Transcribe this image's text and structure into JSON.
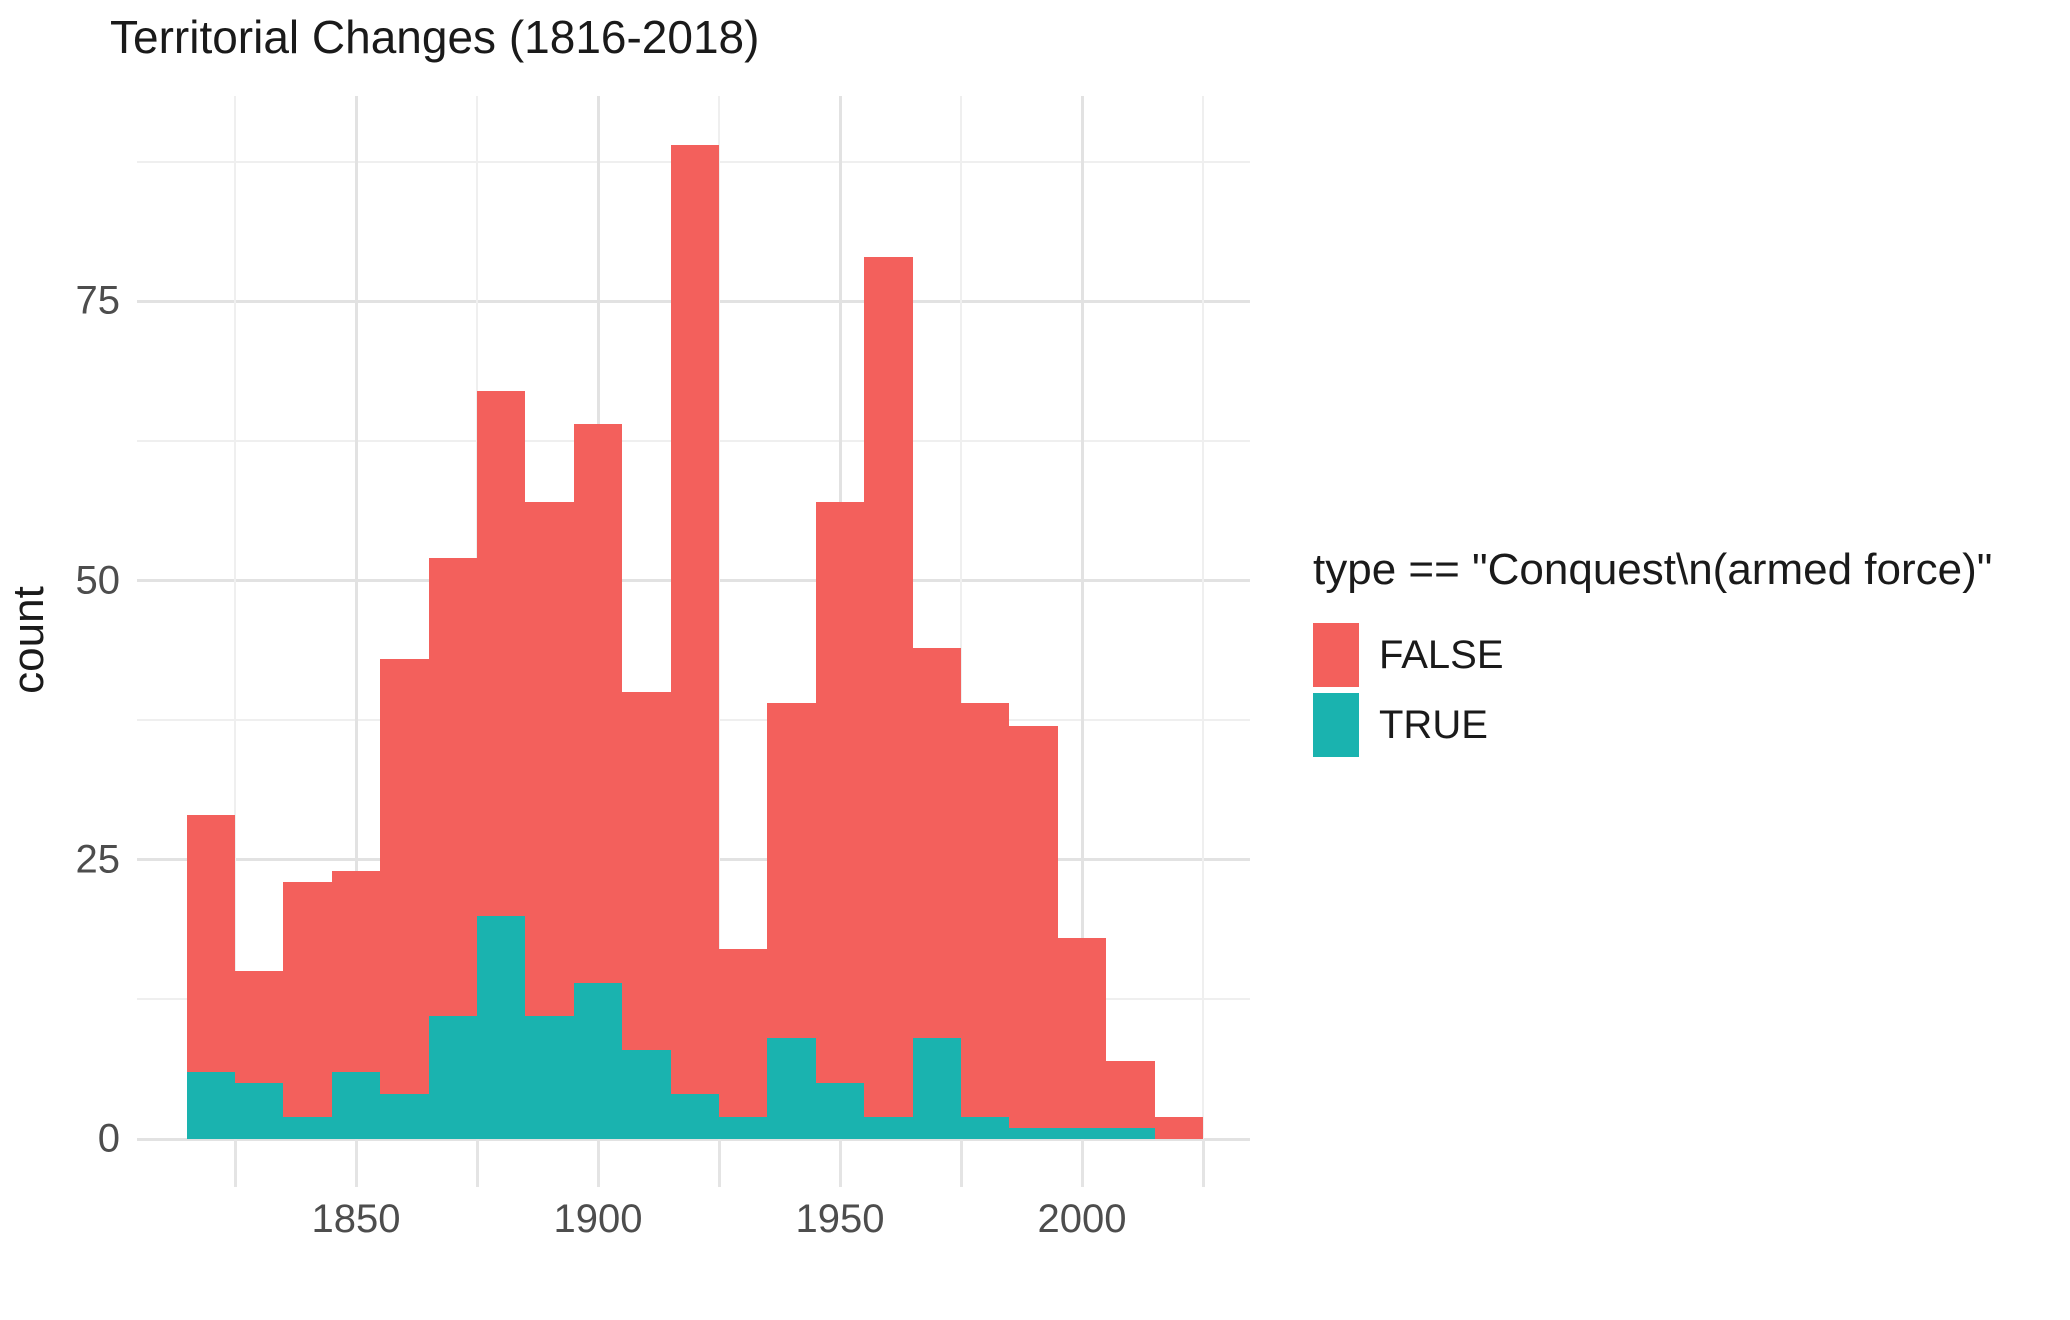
{
  "title": "Territorial Changes (1816-2018)",
  "colors": {
    "false_fill": "#f3605c",
    "true_fill": "#1ab3af",
    "grid_major": "#e2e2e2",
    "grid_minor": "#efefef",
    "axis_text": "#4d4d4d",
    "text": "#1a1a1a"
  },
  "chart_data": {
    "type": "bar",
    "subtype": "stacked-histogram",
    "title": "Territorial Changes (1816-2018)",
    "xlabel": "",
    "ylabel": "count",
    "bin_width_years": 10,
    "x_domain": [
      1815,
      2025
    ],
    "ylim": [
      0,
      93.4
    ],
    "grid": "on",
    "legend_position": "right",
    "categories": [
      1820,
      1830,
      1840,
      1850,
      1860,
      1870,
      1880,
      1890,
      1900,
      1910,
      1920,
      1930,
      1940,
      1950,
      1960,
      1970,
      1980,
      1990,
      2000,
      2010,
      2020
    ],
    "series": [
      {
        "name": "FALSE",
        "values": [
          23,
          10,
          21,
          18,
          39,
          41,
          47,
          46,
          50,
          32,
          85,
          15,
          30,
          52,
          77,
          35,
          37,
          36,
          17,
          6,
          2
        ]
      },
      {
        "name": "TRUE",
        "values": [
          6,
          5,
          2,
          6,
          4,
          11,
          20,
          11,
          14,
          8,
          4,
          2,
          9,
          5,
          2,
          9,
          2,
          1,
          1,
          1,
          0
        ]
      }
    ],
    "totals": [
      29,
      15,
      23,
      24,
      43,
      52,
      67,
      57,
      64,
      40,
      89,
      17,
      39,
      57,
      79,
      44,
      39,
      37,
      18,
      7,
      2
    ],
    "y_ticks": [
      0,
      25,
      50,
      75
    ],
    "y_minor_gridlines": [
      12.5,
      37.5,
      62.5,
      87.5
    ],
    "x_tick_labels": [
      1850,
      1900,
      1950,
      2000
    ],
    "x_gridline_years": [
      1825,
      1850,
      1875,
      1900,
      1925,
      1950,
      1975,
      2000,
      2025
    ],
    "legend": {
      "title": "type == \"Conquest\\n(armed force)\"",
      "entries": [
        {
          "label": "FALSE",
          "color": "#f3605c"
        },
        {
          "label": "TRUE",
          "color": "#1ab3af"
        }
      ]
    }
  }
}
